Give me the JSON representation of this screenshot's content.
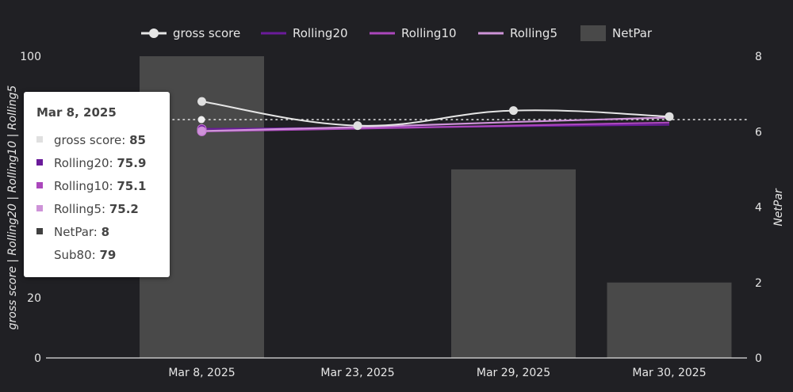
{
  "chart_data": {
    "type": "combo",
    "categories": [
      "Mar 8, 2025",
      "Mar 23, 2025",
      "Mar 29, 2025",
      "Mar 30, 2025"
    ],
    "series": [
      {
        "name": "gross score",
        "type": "line",
        "axis": "left",
        "color": "#e6e6e6",
        "values": [
          85,
          77,
          82,
          80
        ]
      },
      {
        "name": "Rolling20",
        "type": "line",
        "axis": "left",
        "color": "#6a1b9a",
        "values": [
          75.9,
          76.3,
          76.8,
          77.3
        ]
      },
      {
        "name": "Rolling10",
        "type": "line",
        "axis": "left",
        "color": "#ab47bc",
        "values": [
          75.1,
          76.0,
          77.0,
          78.0
        ]
      },
      {
        "name": "Rolling5",
        "type": "line",
        "axis": "left",
        "color": "#ce93d8",
        "values": [
          75.2,
          76.5,
          78.2,
          79.7
        ]
      },
      {
        "name": "NetPar",
        "type": "bar",
        "axis": "right",
        "color": "#494949",
        "values": [
          8,
          0,
          5,
          2
        ]
      }
    ],
    "reference_line": {
      "name": "Sub80",
      "value": 79
    },
    "y_left": {
      "min": 0,
      "max": 100,
      "ticks": [
        0,
        20,
        100
      ],
      "label": "gross score | Rolling20 | Rolling10 | Rolling5"
    },
    "y_right": {
      "min": 0,
      "max": 8,
      "ticks": [
        0,
        2,
        4,
        6,
        8
      ],
      "label": "NetPar"
    },
    "legend_position": "top-center"
  },
  "tooltip": {
    "title": "Mar 8, 2025",
    "rows": [
      {
        "label": "gross score",
        "value": "85",
        "color": "#e0e0e0"
      },
      {
        "label": "Rolling20",
        "value": "75.9",
        "color": "#6a1b9a"
      },
      {
        "label": "Rolling10",
        "value": "75.1",
        "color": "#ab47bc"
      },
      {
        "label": "Rolling5",
        "value": "75.2",
        "color": "#ce93d8"
      },
      {
        "label": "NetPar",
        "value": "8",
        "color": "#404040"
      },
      {
        "label": "Sub80",
        "value": "79",
        "color": ""
      }
    ]
  }
}
